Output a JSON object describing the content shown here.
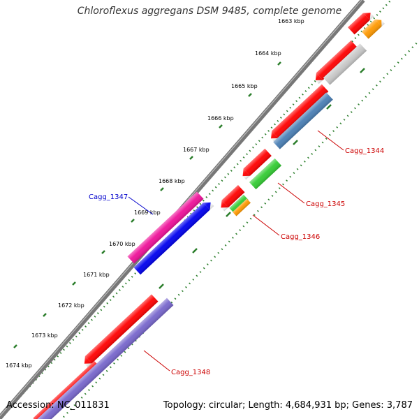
{
  "title": "Chloroflexus aggregans DSM 9485, complete genome",
  "accession": "Accession: NC_011831",
  "summary": "Topology: circular; Length: 4,684,931 bp; Genes: 3,787",
  "ticks": [
    "1663 kbp",
    "1664 kbp",
    "1665 kbp",
    "1666 kbp",
    "1667 kbp",
    "1668 kbp",
    "1669 kbp",
    "1670 kbp",
    "1671 kbp",
    "1672 kbp",
    "1673 kbp",
    "1674 kbp"
  ],
  "gene_labels": [
    {
      "text": "Cagg_1344",
      "color": "#cc0000"
    },
    {
      "text": "Cagg_1345",
      "color": "#cc0000"
    },
    {
      "text": "Cagg_1346",
      "color": "#cc0000"
    },
    {
      "text": "Cagg_1347",
      "color": "#0000cc"
    },
    {
      "text": "Cagg_1348",
      "color": "#cc0000"
    }
  ],
  "colors": {
    "backbone": "#777777",
    "tick_dots": "#2a7d2a",
    "cds_red": "#ff0000",
    "grey": "#c8c8c8",
    "orange": "#ff9900",
    "steel_blue": "#4a7fb5",
    "green": "#33cc33",
    "magenta": "#ee1199",
    "blue": "#0000ee",
    "lavender": "#7766cc"
  }
}
